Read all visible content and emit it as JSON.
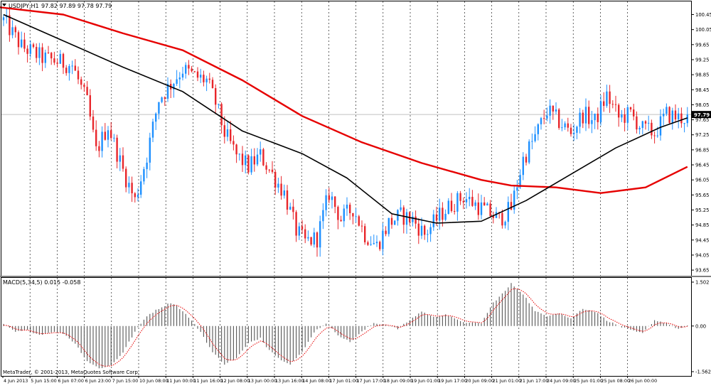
{
  "header": {
    "symbol": "USDJPY,H1",
    "ohlc": "97.82 97.89 97.78 97.79"
  },
  "price_panel": {
    "y_ticks": [
      "100.45",
      "100.05",
      "99.65",
      "99.25",
      "98.85",
      "98.45",
      "98.05",
      "97.65",
      "97.25",
      "96.85",
      "96.45",
      "96.05",
      "95.65",
      "95.25",
      "94.85",
      "94.45",
      "94.05",
      "93.65"
    ],
    "current_price": "97.79"
  },
  "macd_panel": {
    "title": "MACD(5,34,5) 0.015 -0.058",
    "y_ticks": [
      "1.502",
      "0.00",
      "-1.562"
    ],
    "copyright": "MetaTrader, © 2001-2013, MetaQuotes Software Corp."
  },
  "x_axis": {
    "labels": [
      "4 Jun 2013",
      "5 Jun 15:00",
      "6 Jun 07:00",
      "6 Jun 23:00",
      "7 Jun 15:00",
      "10 Jun 08:00",
      "11 Jun 00:00",
      "11 Jun 16:00",
      "12 Jun 08:00",
      "13 Jun 00:00",
      "13 Jun 16:00",
      "14 Jun 08:00",
      "17 Jun 01:00",
      "17 Jun 17:00",
      "18 Jun 09:00",
      "19 Jun 01:00",
      "19 Jun 17:00",
      "20 Jun 09:00",
      "21 Jun 01:00",
      "21 Jun 17:00",
      "24 Jun 09:00",
      "25 Jun 01:00",
      "25 Jun 08:00",
      "26 Jun 00:00"
    ]
  },
  "colors": {
    "bull": "#1e90ff",
    "bear": "#e8262b",
    "ma_slow": "#e60000",
    "ma_fast": "#000000",
    "histogram": "#555555",
    "signal": "#e60000",
    "grid": "#000000",
    "current_line": "#c0c0c0"
  },
  "chart_data": [
    {
      "type": "candlestick",
      "title": "USDJPY,H1",
      "ylim": [
        93.5,
        100.8
      ],
      "close_path": [
        [
          0,
          100.3
        ],
        [
          6,
          99.6
        ],
        [
          13,
          99.3
        ],
        [
          18,
          99.2
        ],
        [
          23,
          99.1
        ],
        [
          28,
          98.1
        ],
        [
          31,
          96.8
        ],
        [
          35,
          97.5
        ],
        [
          40,
          96.3
        ],
        [
          44,
          95.5
        ],
        [
          48,
          96.7
        ],
        [
          52,
          98.2
        ],
        [
          56,
          98.6
        ],
        [
          60,
          99.0
        ],
        [
          64,
          98.8
        ],
        [
          68,
          98.7
        ],
        [
          71,
          98.1
        ],
        [
          74,
          97.3
        ],
        [
          78,
          96.7
        ],
        [
          82,
          96.4
        ],
        [
          86,
          96.7
        ],
        [
          90,
          96.2
        ],
        [
          94,
          95.7
        ],
        [
          98,
          94.7
        ],
        [
          101,
          94.4
        ],
        [
          105,
          94.5
        ],
        [
          109,
          95.7
        ],
        [
          113,
          95.0
        ],
        [
          117,
          95.3
        ],
        [
          121,
          94.6
        ],
        [
          125,
          94.3
        ],
        [
          129,
          94.9
        ],
        [
          133,
          95.1
        ],
        [
          137,
          95.0
        ],
        [
          141,
          94.6
        ],
        [
          146,
          95.1
        ],
        [
          150,
          95.4
        ],
        [
          154,
          95.6
        ],
        [
          158,
          95.4
        ],
        [
          162,
          95.2
        ],
        [
          166,
          95.0
        ],
        [
          170,
          95.3
        ],
        [
          174,
          96.6
        ],
        [
          178,
          97.2
        ],
        [
          182,
          97.9
        ],
        [
          186,
          97.6
        ],
        [
          190,
          97.3
        ],
        [
          194,
          97.8
        ],
        [
          198,
          97.6
        ],
        [
          202,
          98.3
        ],
        [
          206,
          97.7
        ],
        [
          210,
          97.8
        ],
        [
          214,
          97.4
        ],
        [
          218,
          97.3
        ],
        [
          222,
          97.8
        ],
        [
          226,
          97.7
        ],
        [
          229,
          97.7
        ]
      ],
      "series": [
        {
          "name": "MA slow",
          "points": [
            [
              -2,
              100.65
            ],
            [
              20,
              100.45
            ],
            [
              40,
              99.95
            ],
            [
              60,
              99.5
            ],
            [
              80,
              98.7
            ],
            [
              100,
              97.75
            ],
            [
              120,
              97.05
            ],
            [
              140,
              96.5
            ],
            [
              160,
              96.05
            ],
            [
              170,
              95.9
            ],
            [
              185,
              95.85
            ],
            [
              200,
              95.7
            ],
            [
              215,
              95.85
            ],
            [
              229,
              96.4
            ]
          ]
        },
        {
          "name": "MA fast",
          "points": [
            [
              0,
              100.45
            ],
            [
              20,
              99.75
            ],
            [
              40,
              99.05
            ],
            [
              60,
              98.4
            ],
            [
              80,
              97.35
            ],
            [
              100,
              96.75
            ],
            [
              115,
              96.1
            ],
            [
              130,
              95.15
            ],
            [
              145,
              94.9
            ],
            [
              160,
              94.95
            ],
            [
              175,
              95.5
            ],
            [
              190,
              96.2
            ],
            [
              205,
              96.9
            ],
            [
              220,
              97.45
            ],
            [
              229,
              97.7
            ]
          ]
        }
      ]
    },
    {
      "type": "bar",
      "title": "MACD(5,34,5)",
      "ylim": [
        -1.562,
        1.502
      ],
      "histogram_path": [
        [
          0,
          0.05
        ],
        [
          4,
          -0.2
        ],
        [
          8,
          -0.15
        ],
        [
          12,
          -0.3
        ],
        [
          16,
          -0.2
        ],
        [
          20,
          -0.25
        ],
        [
          24,
          -0.6
        ],
        [
          28,
          -1.2
        ],
        [
          32,
          -1.45
        ],
        [
          36,
          -1.35
        ],
        [
          40,
          -0.9
        ],
        [
          44,
          -0.2
        ],
        [
          48,
          0.35
        ],
        [
          52,
          0.6
        ],
        [
          56,
          0.8
        ],
        [
          58,
          0.7
        ],
        [
          62,
          0.3
        ],
        [
          66,
          -0.2
        ],
        [
          70,
          -0.9
        ],
        [
          74,
          -1.3
        ],
        [
          78,
          -1.1
        ],
        [
          82,
          -0.6
        ],
        [
          86,
          -0.4
        ],
        [
          88,
          -0.7
        ],
        [
          92,
          -1.1
        ],
        [
          96,
          -1.3
        ],
        [
          100,
          -0.9
        ],
        [
          104,
          -0.2
        ],
        [
          108,
          0.1
        ],
        [
          112,
          -0.3
        ],
        [
          116,
          -0.55
        ],
        [
          120,
          -0.2
        ],
        [
          124,
          0.1
        ],
        [
          128,
          0.05
        ],
        [
          132,
          -0.1
        ],
        [
          136,
          0.2
        ],
        [
          140,
          0.5
        ],
        [
          144,
          0.3
        ],
        [
          148,
          0.4
        ],
        [
          152,
          0.2
        ],
        [
          156,
          0.1
        ],
        [
          160,
          0.1
        ],
        [
          164,
          0.8
        ],
        [
          168,
          1.2
        ],
        [
          170,
          1.45
        ],
        [
          174,
          1.1
        ],
        [
          178,
          0.5
        ],
        [
          182,
          0.35
        ],
        [
          186,
          0.45
        ],
        [
          190,
          0.25
        ],
        [
          194,
          0.6
        ],
        [
          198,
          0.5
        ],
        [
          202,
          0.2
        ],
        [
          206,
          0.0
        ],
        [
          210,
          -0.15
        ],
        [
          214,
          -0.25
        ],
        [
          218,
          0.2
        ],
        [
          222,
          0.1
        ],
        [
          226,
          -0.1
        ],
        [
          229,
          0.0
        ]
      ]
    }
  ]
}
